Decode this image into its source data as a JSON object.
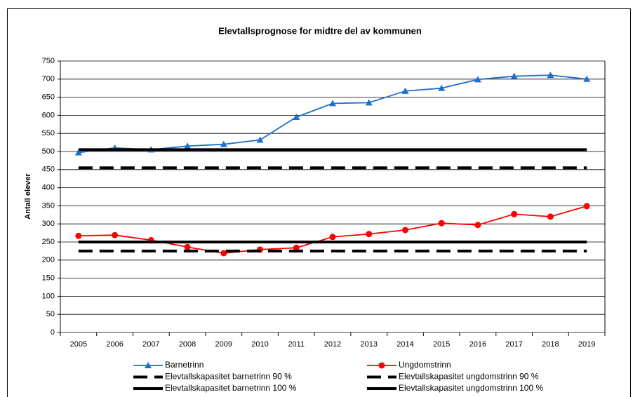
{
  "chart_data": {
    "type": "line",
    "title": "Elevtallsprognose for midtre del av kommunen",
    "y_label": "Antall elever",
    "categories": [
      "2005",
      "2006",
      "2007",
      "2008",
      "2009",
      "2010",
      "2011",
      "2012",
      "2013",
      "2014",
      "2015",
      "2016",
      "2017",
      "2018",
      "2019"
    ],
    "series": [
      {
        "name": "Barnetrinn",
        "color": "#1f6fd0",
        "marker": "triangle",
        "dash": "solid",
        "values": [
          497,
          510,
          505,
          515,
          520,
          532,
          595,
          633,
          635,
          667,
          675,
          699,
          708,
          711,
          700
        ]
      },
      {
        "name": "Ungdomstrinn",
        "color": "#ff0000",
        "marker": "circle",
        "dash": "solid",
        "values": [
          267,
          269,
          255,
          236,
          219,
          229,
          234,
          264,
          272,
          283,
          302,
          297,
          327,
          320,
          349
        ]
      },
      {
        "name": "Elevtallskapasitet barnetrinn 90 %",
        "color": "#000000",
        "marker": "none",
        "dash": "dashed",
        "values": [
          455,
          455,
          455,
          455,
          455,
          455,
          455,
          455,
          455,
          455,
          455,
          455,
          455,
          455,
          455
        ]
      },
      {
        "name": "Elevtallskapasitet ungdomstrinn 90 %",
        "color": "#000000",
        "marker": "none",
        "dash": "dashed",
        "values": [
          225,
          225,
          225,
          225,
          225,
          225,
          225,
          225,
          225,
          225,
          225,
          225,
          225,
          225,
          225
        ]
      },
      {
        "name": "Elevtallskapasitet barnetrinn 100 %",
        "color": "#000000",
        "marker": "none",
        "dash": "solid",
        "values": [
          505,
          505,
          505,
          505,
          505,
          505,
          505,
          505,
          505,
          505,
          505,
          505,
          505,
          505,
          505
        ]
      },
      {
        "name": "Elevtallskapasitet ungdomstrinn 100 %",
        "color": "#000000",
        "marker": "none",
        "dash": "solid",
        "values": [
          250,
          250,
          250,
          250,
          250,
          250,
          250,
          250,
          250,
          250,
          250,
          250,
          250,
          250,
          250
        ]
      }
    ],
    "ylim": [
      0,
      750
    ],
    "yticks": [
      0,
      50,
      100,
      150,
      200,
      250,
      300,
      350,
      400,
      450,
      500,
      550,
      600,
      650,
      700,
      750
    ],
    "grid": true,
    "legend": "bottom"
  }
}
